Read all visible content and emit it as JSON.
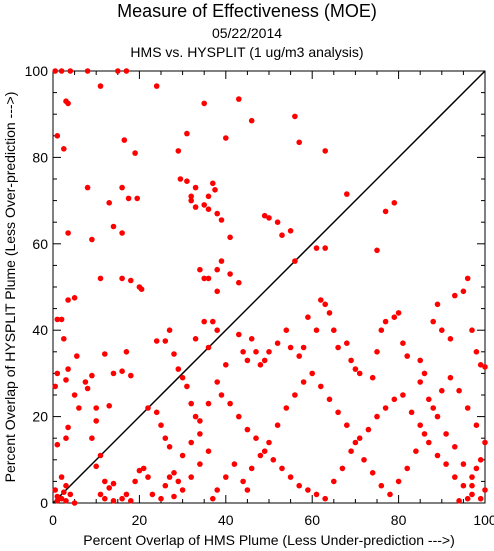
{
  "chart_data": {
    "type": "scatter",
    "title": "Measure of Effectiveness (MOE)",
    "subtitle": "05/22/2014",
    "subtitle2": "HMS vs. HYSPLIT  (1 ug/m3 analysis)",
    "xlabel": "Percent Overlap of HMS Plume (Less Under-prediction --->)",
    "ylabel": "Percent Overlap of HYSPLIT Plume (Less Over-prediction --->)",
    "xlim": [
      0,
      100
    ],
    "ylim": [
      0,
      100
    ],
    "xticks": [
      "0",
      "20",
      "40",
      "60",
      "80",
      "100"
    ],
    "yticks": [
      "0",
      "20",
      "40",
      "60",
      "80",
      "100"
    ],
    "reference_line": "diagonal y = x",
    "grid": false,
    "colors": {
      "points": "#ff0000",
      "axes": "#000000"
    },
    "points": [
      [
        0.5,
        100
      ],
      [
        2,
        100
      ],
      [
        4,
        100
      ],
      [
        8,
        100
      ],
      [
        15,
        100
      ],
      [
        17,
        100
      ],
      [
        11,
        96.5
      ],
      [
        24,
        96.5
      ],
      [
        35,
        92.5
      ],
      [
        3,
        93
      ],
      [
        3.5,
        92.5
      ],
      [
        43,
        93.5
      ],
      [
        1,
        85
      ],
      [
        2.5,
        82
      ],
      [
        16.5,
        84
      ],
      [
        31,
        85.5
      ],
      [
        40,
        84.5
      ],
      [
        46,
        88.5
      ],
      [
        56,
        89.5
      ],
      [
        57,
        83.5
      ],
      [
        63,
        81.5
      ],
      [
        29,
        81.5
      ],
      [
        19,
        81
      ],
      [
        8,
        73
      ],
      [
        16,
        73
      ],
      [
        17.5,
        70.5
      ],
      [
        19.5,
        70.5
      ],
      [
        13,
        69.5
      ],
      [
        14,
        64
      ],
      [
        16,
        62.5
      ],
      [
        9,
        61
      ],
      [
        3.5,
        62.5
      ],
      [
        29.5,
        75
      ],
      [
        31,
        74.5
      ],
      [
        33,
        73
      ],
      [
        32,
        71
      ],
      [
        32,
        70
      ],
      [
        33,
        68.5
      ],
      [
        35,
        69
      ],
      [
        36,
        71
      ],
      [
        37,
        74
      ],
      [
        37.5,
        72.5
      ],
      [
        36,
        68
      ],
      [
        38,
        67
      ],
      [
        39,
        65.5
      ],
      [
        41,
        61.5
      ],
      [
        49,
        66.5
      ],
      [
        50,
        66
      ],
      [
        52,
        65
      ],
      [
        53,
        62
      ],
      [
        55,
        63
      ],
      [
        56,
        56
      ],
      [
        61,
        59
      ],
      [
        63,
        59
      ],
      [
        68,
        71.5
      ],
      [
        77,
        67.5
      ],
      [
        79,
        69.5
      ],
      [
        75,
        58.5
      ],
      [
        11,
        52
      ],
      [
        16,
        52
      ],
      [
        18,
        51.5
      ],
      [
        20,
        50
      ],
      [
        20.5,
        49.5
      ],
      [
        5,
        47.5
      ],
      [
        3.5,
        47
      ],
      [
        1,
        42.5
      ],
      [
        2,
        42.5
      ],
      [
        2.5,
        38
      ],
      [
        5.5,
        34
      ],
      [
        3.5,
        31
      ],
      [
        1,
        30
      ],
      [
        0.5,
        27
      ],
      [
        3,
        28.5
      ],
      [
        5,
        25
      ],
      [
        6,
        22
      ],
      [
        3.5,
        17.5
      ],
      [
        3,
        15
      ],
      [
        1,
        13.5
      ],
      [
        2,
        6
      ],
      [
        3,
        4
      ],
      [
        0.5,
        3
      ],
      [
        1,
        1.5
      ],
      [
        2,
        1
      ],
      [
        3,
        0.5
      ],
      [
        4,
        2
      ],
      [
        1,
        0.5
      ],
      [
        5,
        0
      ],
      [
        2.5,
        2.5
      ],
      [
        7.5,
        28
      ],
      [
        8,
        26.5
      ],
      [
        9,
        29.5
      ],
      [
        10,
        22
      ],
      [
        10,
        19
      ],
      [
        9,
        15
      ],
      [
        13,
        22.5
      ],
      [
        14,
        30
      ],
      [
        16,
        30.5
      ],
      [
        18,
        29.5
      ],
      [
        17,
        35
      ],
      [
        12,
        34.5
      ],
      [
        11,
        11
      ],
      [
        10,
        8.5
      ],
      [
        12,
        5
      ],
      [
        13,
        3.5
      ],
      [
        14,
        4.5
      ],
      [
        11,
        2
      ],
      [
        12,
        1
      ],
      [
        14,
        0.5
      ],
      [
        16,
        1
      ],
      [
        17,
        2
      ],
      [
        18,
        0.5
      ],
      [
        19,
        5
      ],
      [
        20,
        7.5
      ],
      [
        21,
        8
      ],
      [
        22,
        6
      ],
      [
        23,
        2
      ],
      [
        25,
        1
      ],
      [
        26,
        4
      ],
      [
        27,
        6
      ],
      [
        28,
        7
      ],
      [
        29,
        5
      ],
      [
        22,
        22
      ],
      [
        24,
        21
      ],
      [
        25,
        18
      ],
      [
        26,
        15
      ],
      [
        27,
        13
      ],
      [
        24,
        37.5
      ],
      [
        26,
        37.5
      ],
      [
        27,
        40
      ],
      [
        28,
        34.5
      ],
      [
        29,
        31
      ],
      [
        30,
        29
      ],
      [
        31,
        27
      ],
      [
        32,
        23
      ],
      [
        33,
        20
      ],
      [
        34,
        16
      ],
      [
        33,
        38
      ],
      [
        35,
        42
      ],
      [
        36,
        36
      ],
      [
        37,
        42
      ],
      [
        38,
        40
      ],
      [
        34,
        54
      ],
      [
        35,
        52
      ],
      [
        36,
        52
      ],
      [
        38,
        54
      ],
      [
        39,
        56
      ],
      [
        41,
        53
      ],
      [
        43,
        51
      ],
      [
        38,
        49
      ],
      [
        43,
        39
      ],
      [
        44,
        35
      ],
      [
        45,
        33
      ],
      [
        46,
        38
      ],
      [
        47,
        35
      ],
      [
        48,
        32
      ],
      [
        49,
        33
      ],
      [
        50,
        35
      ],
      [
        52,
        37
      ],
      [
        54,
        40
      ],
      [
        55,
        36
      ],
      [
        57,
        34
      ],
      [
        58,
        36
      ],
      [
        59,
        43
      ],
      [
        61,
        40
      ],
      [
        62,
        47
      ],
      [
        63,
        46
      ],
      [
        64,
        44
      ],
      [
        65,
        40
      ],
      [
        66,
        36
      ],
      [
        68,
        37
      ],
      [
        69,
        33
      ],
      [
        70,
        31
      ],
      [
        71,
        30
      ],
      [
        74,
        29
      ],
      [
        75,
        35
      ],
      [
        76,
        40
      ],
      [
        77,
        42
      ],
      [
        79,
        43
      ],
      [
        80,
        44
      ],
      [
        81,
        37
      ],
      [
        82,
        34
      ],
      [
        85,
        33
      ],
      [
        86,
        30
      ],
      [
        88,
        42
      ],
      [
        89,
        46
      ],
      [
        90,
        40
      ],
      [
        92,
        38
      ],
      [
        93,
        48
      ],
      [
        95,
        49
      ],
      [
        96,
        52
      ],
      [
        97,
        40
      ],
      [
        98,
        35
      ],
      [
        99,
        32
      ],
      [
        100,
        31.5
      ],
      [
        39,
        25
      ],
      [
        41,
        23
      ],
      [
        43,
        20
      ],
      [
        45,
        17
      ],
      [
        47,
        15
      ],
      [
        49,
        12
      ],
      [
        51,
        10
      ],
      [
        53,
        8
      ],
      [
        55,
        6
      ],
      [
        57,
        4
      ],
      [
        59,
        3
      ],
      [
        61,
        2
      ],
      [
        63,
        1
      ],
      [
        65,
        5
      ],
      [
        67,
        8
      ],
      [
        69,
        12
      ],
      [
        71,
        15
      ],
      [
        73,
        17
      ],
      [
        75,
        20
      ],
      [
        77,
        22
      ],
      [
        79,
        24
      ],
      [
        81,
        25
      ],
      [
        83,
        21
      ],
      [
        85,
        18
      ],
      [
        87,
        14
      ],
      [
        89,
        11
      ],
      [
        91,
        9
      ],
      [
        93,
        6
      ],
      [
        95,
        4
      ],
      [
        97,
        2
      ],
      [
        99,
        1
      ],
      [
        100,
        3
      ],
      [
        97,
        6
      ],
      [
        95,
        9
      ],
      [
        93,
        13
      ],
      [
        91,
        16
      ],
      [
        89,
        20
      ],
      [
        87,
        24
      ],
      [
        85,
        28
      ],
      [
        60,
        30
      ],
      [
        62,
        27
      ],
      [
        64,
        24
      ],
      [
        66,
        21
      ],
      [
        68,
        18
      ],
      [
        70,
        14
      ],
      [
        72,
        10
      ],
      [
        74,
        7
      ],
      [
        76,
        4
      ],
      [
        78,
        2
      ],
      [
        80,
        5
      ],
      [
        82,
        8
      ],
      [
        84,
        12
      ],
      [
        86,
        16
      ],
      [
        88,
        22
      ],
      [
        90,
        26
      ],
      [
        92,
        29
      ],
      [
        94,
        26
      ],
      [
        96,
        22
      ],
      [
        98,
        18
      ],
      [
        100,
        14
      ],
      [
        99,
        10
      ],
      [
        98,
        8
      ],
      [
        97,
        4
      ],
      [
        96,
        1
      ],
      [
        94,
        0.5
      ],
      [
        45,
        3
      ],
      [
        44,
        5
      ],
      [
        46,
        8
      ],
      [
        48,
        11
      ],
      [
        50,
        14
      ],
      [
        52,
        18
      ],
      [
        54,
        22
      ],
      [
        56,
        25
      ],
      [
        58,
        28
      ],
      [
        37,
        1
      ],
      [
        38,
        3
      ],
      [
        40,
        6
      ],
      [
        42,
        9
      ],
      [
        36,
        12
      ],
      [
        34,
        9
      ],
      [
        32,
        6
      ],
      [
        30,
        3
      ],
      [
        28,
        1.5
      ],
      [
        30,
        11
      ],
      [
        32,
        14
      ],
      [
        34,
        19
      ],
      [
        36,
        23
      ],
      [
        38,
        28
      ],
      [
        40,
        32
      ]
    ]
  }
}
